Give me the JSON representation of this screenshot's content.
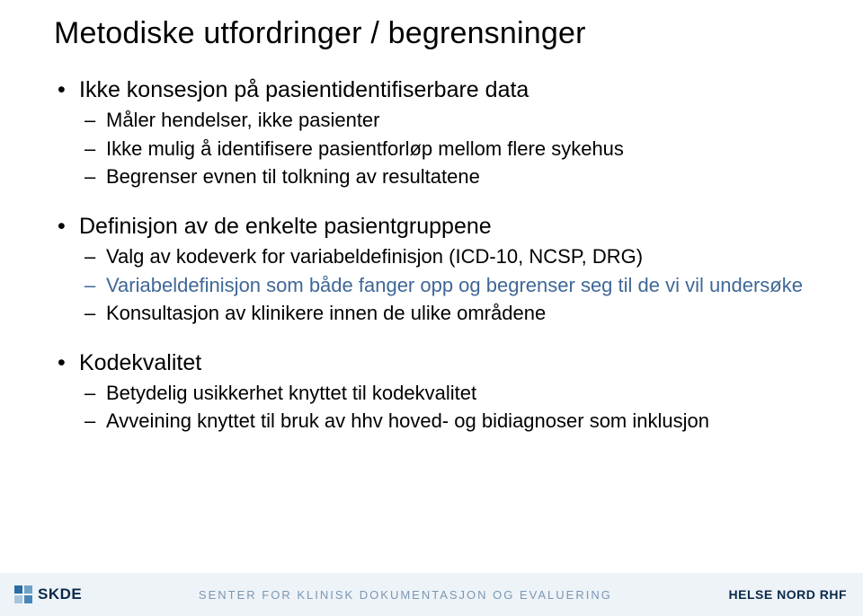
{
  "title": "Metodiske utfordringer / begrensninger",
  "colors": {
    "text": "#000000",
    "highlight": "#3f6797",
    "footer_bg": "#eef3f8",
    "footer_center": "#7a97b2",
    "footer_dark": "#0a2a4a",
    "logo_sq": [
      "#2b6ca3",
      "#6fa3c7",
      "#a7c4da",
      "#4a86b8"
    ]
  },
  "typography": {
    "title_fontsize": 34,
    "bullet_fontsize": 25,
    "subbullet_fontsize": 22,
    "footer_center_fontsize": 13,
    "footer_side_fontsize": 15
  },
  "bullets": {
    "b1": {
      "text": "Ikke konsesjon på pasientidentifiserbare data",
      "sub": [
        "Måler hendelser, ikke pasienter",
        "Ikke mulig å identifisere pasientforløp mellom flere sykehus",
        "Begrenser evnen til tolkning av resultatene"
      ]
    },
    "b2": {
      "text": "Definisjon av de enkelte pasientgruppene",
      "sub": [
        "Valg av kodeverk for variabeldefinisjon (ICD-10, NCSP, DRG)",
        "Variabeldefinisjon som både fanger opp og begrenser seg til de vi vil undersøke",
        "Konsultasjon av klinikere innen de ulike områdene"
      ],
      "highlight_index": 1
    },
    "b3": {
      "text": "Kodekvalitet",
      "sub": [
        "Betydelig usikkerhet knyttet til kodekvalitet",
        "Avveining knyttet til bruk av hhv hoved- og bidiagnoser som inklusjon"
      ]
    }
  },
  "footer": {
    "logo_text": "SKDE",
    "center_text": "SENTER FOR KLINISK DOKUMENTASJON OG EVALUERING",
    "right_text": "HELSE NORD RHF"
  }
}
